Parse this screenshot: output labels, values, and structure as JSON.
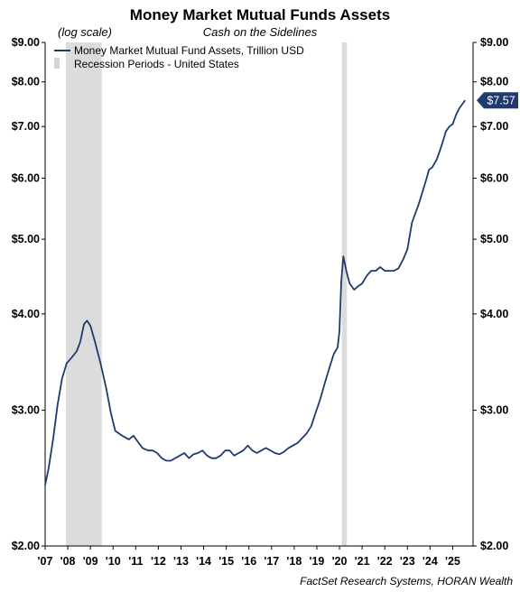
{
  "chart_data": {
    "type": "line",
    "title": "Money Market Mutual Funds Assets",
    "subtitle": "Cash on the Sidelines",
    "scale_note": "(log scale)",
    "y_scale": "log",
    "ylim": [
      2.0,
      9.0
    ],
    "xlim": [
      2007.0,
      2025.9
    ],
    "y_ticks": [
      {
        "value": 2.0,
        "label": "$2.00"
      },
      {
        "value": 3.0,
        "label": "$3.00"
      },
      {
        "value": 4.0,
        "label": "$4.00"
      },
      {
        "value": 5.0,
        "label": "$5.00"
      },
      {
        "value": 6.0,
        "label": "$6.00"
      },
      {
        "value": 7.0,
        "label": "$7.00"
      },
      {
        "value": 8.0,
        "label": "$8.00"
      },
      {
        "value": 9.0,
        "label": "$9.00"
      }
    ],
    "x_ticks": [
      {
        "value": 2007,
        "label": "'07"
      },
      {
        "value": 2008,
        "label": "'08"
      },
      {
        "value": 2009,
        "label": "'09"
      },
      {
        "value": 2010,
        "label": "'10"
      },
      {
        "value": 2011,
        "label": "'11"
      },
      {
        "value": 2012,
        "label": "'12"
      },
      {
        "value": 2013,
        "label": "'13"
      },
      {
        "value": 2014,
        "label": "'14"
      },
      {
        "value": 2015,
        "label": "'15"
      },
      {
        "value": 2016,
        "label": "'16"
      },
      {
        "value": 2017,
        "label": "'17"
      },
      {
        "value": 2018,
        "label": "'18"
      },
      {
        "value": 2019,
        "label": "'19"
      },
      {
        "value": 2020,
        "label": "'20"
      },
      {
        "value": 2021,
        "label": "'21"
      },
      {
        "value": 2022,
        "label": "'22"
      },
      {
        "value": 2023,
        "label": "'23"
      },
      {
        "value": 2024,
        "label": "'24"
      },
      {
        "value": 2025,
        "label": "'25"
      }
    ],
    "series": [
      {
        "name": "Money Market Mutual Fund Assets, Trillion USD",
        "color": "#1f3a6e",
        "points": [
          [
            2007.0,
            2.4
          ],
          [
            2007.15,
            2.52
          ],
          [
            2007.35,
            2.75
          ],
          [
            2007.55,
            3.05
          ],
          [
            2007.75,
            3.3
          ],
          [
            2007.95,
            3.45
          ],
          [
            2008.2,
            3.52
          ],
          [
            2008.4,
            3.58
          ],
          [
            2008.55,
            3.68
          ],
          [
            2008.72,
            3.88
          ],
          [
            2008.85,
            3.92
          ],
          [
            2009.0,
            3.86
          ],
          [
            2009.2,
            3.68
          ],
          [
            2009.45,
            3.45
          ],
          [
            2009.7,
            3.2
          ],
          [
            2009.9,
            2.98
          ],
          [
            2010.1,
            2.82
          ],
          [
            2010.4,
            2.78
          ],
          [
            2010.7,
            2.75
          ],
          [
            2010.9,
            2.78
          ],
          [
            2011.1,
            2.73
          ],
          [
            2011.3,
            2.68
          ],
          [
            2011.55,
            2.66
          ],
          [
            2011.75,
            2.66
          ],
          [
            2011.95,
            2.64
          ],
          [
            2012.15,
            2.6
          ],
          [
            2012.35,
            2.58
          ],
          [
            2012.55,
            2.58
          ],
          [
            2012.75,
            2.6
          ],
          [
            2012.95,
            2.62
          ],
          [
            2013.15,
            2.64
          ],
          [
            2013.35,
            2.6
          ],
          [
            2013.55,
            2.63
          ],
          [
            2013.75,
            2.64
          ],
          [
            2013.95,
            2.66
          ],
          [
            2014.15,
            2.62
          ],
          [
            2014.35,
            2.6
          ],
          [
            2014.55,
            2.6
          ],
          [
            2014.75,
            2.62
          ],
          [
            2014.95,
            2.66
          ],
          [
            2015.15,
            2.66
          ],
          [
            2015.35,
            2.62
          ],
          [
            2015.55,
            2.64
          ],
          [
            2015.75,
            2.66
          ],
          [
            2015.95,
            2.7
          ],
          [
            2016.15,
            2.66
          ],
          [
            2016.35,
            2.64
          ],
          [
            2016.55,
            2.66
          ],
          [
            2016.75,
            2.68
          ],
          [
            2016.95,
            2.66
          ],
          [
            2017.15,
            2.64
          ],
          [
            2017.35,
            2.63
          ],
          [
            2017.55,
            2.65
          ],
          [
            2017.75,
            2.68
          ],
          [
            2017.95,
            2.7
          ],
          [
            2018.15,
            2.72
          ],
          [
            2018.35,
            2.76
          ],
          [
            2018.55,
            2.8
          ],
          [
            2018.75,
            2.86
          ],
          [
            2018.95,
            2.98
          ],
          [
            2019.15,
            3.1
          ],
          [
            2019.35,
            3.25
          ],
          [
            2019.55,
            3.4
          ],
          [
            2019.75,
            3.55
          ],
          [
            2019.92,
            3.62
          ],
          [
            2020.0,
            3.8
          ],
          [
            2020.08,
            4.4
          ],
          [
            2020.17,
            4.75
          ],
          [
            2020.3,
            4.55
          ],
          [
            2020.45,
            4.38
          ],
          [
            2020.65,
            4.3
          ],
          [
            2020.85,
            4.35
          ],
          [
            2021.0,
            4.38
          ],
          [
            2021.2,
            4.48
          ],
          [
            2021.4,
            4.55
          ],
          [
            2021.6,
            4.55
          ],
          [
            2021.8,
            4.6
          ],
          [
            2022.0,
            4.55
          ],
          [
            2022.2,
            4.55
          ],
          [
            2022.4,
            4.55
          ],
          [
            2022.6,
            4.58
          ],
          [
            2022.8,
            4.7
          ],
          [
            2023.0,
            4.85
          ],
          [
            2023.1,
            5.05
          ],
          [
            2023.2,
            5.25
          ],
          [
            2023.35,
            5.4
          ],
          [
            2023.5,
            5.55
          ],
          [
            2023.7,
            5.8
          ],
          [
            2023.85,
            6.0
          ],
          [
            2023.95,
            6.15
          ],
          [
            2024.1,
            6.2
          ],
          [
            2024.3,
            6.35
          ],
          [
            2024.5,
            6.6
          ],
          [
            2024.7,
            6.9
          ],
          [
            2024.85,
            7.0
          ],
          [
            2025.0,
            7.05
          ],
          [
            2025.15,
            7.25
          ],
          [
            2025.3,
            7.4
          ],
          [
            2025.45,
            7.5
          ],
          [
            2025.55,
            7.57
          ]
        ]
      }
    ],
    "recessions": [
      {
        "start": 2007.92,
        "end": 2009.5
      },
      {
        "start": 2020.1,
        "end": 2020.33
      }
    ],
    "recession_color": "#dcdcdc",
    "legend": [
      {
        "type": "line",
        "label": "Money Market Mutual Fund Assets, Trillion USD"
      },
      {
        "type": "band",
        "label": "Recession Periods - United States"
      }
    ],
    "legend_position": "top-left",
    "last_value_label": "$7.57",
    "grid": false,
    "source": "FactSet Research Systems, HORAN Wealth"
  }
}
